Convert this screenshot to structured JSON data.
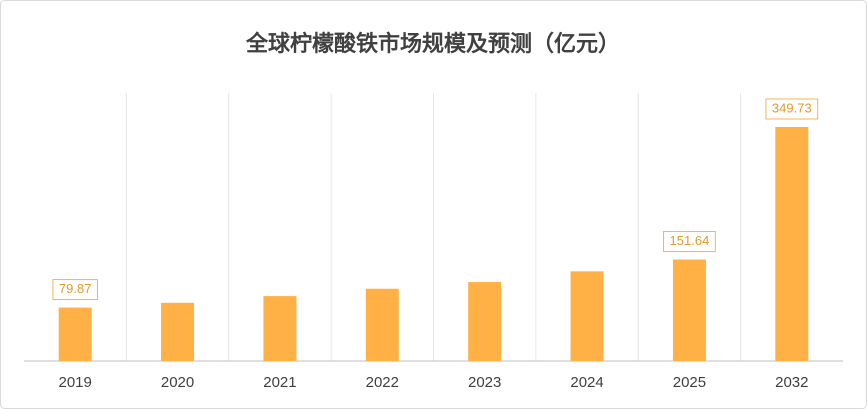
{
  "chart_data": {
    "type": "bar",
    "title": "全球柠檬酸铁市场规模及预测（亿元）",
    "categories": [
      "2019",
      "2020",
      "2021",
      "2022",
      "2023",
      "2024",
      "2025",
      "2032"
    ],
    "values": [
      79.87,
      87,
      97,
      108,
      118,
      134,
      151.64,
      349.73
    ],
    "value_labels": [
      "79.87",
      null,
      null,
      null,
      null,
      null,
      "151.64",
      "349.73"
    ],
    "color": "#ffb146"
  }
}
